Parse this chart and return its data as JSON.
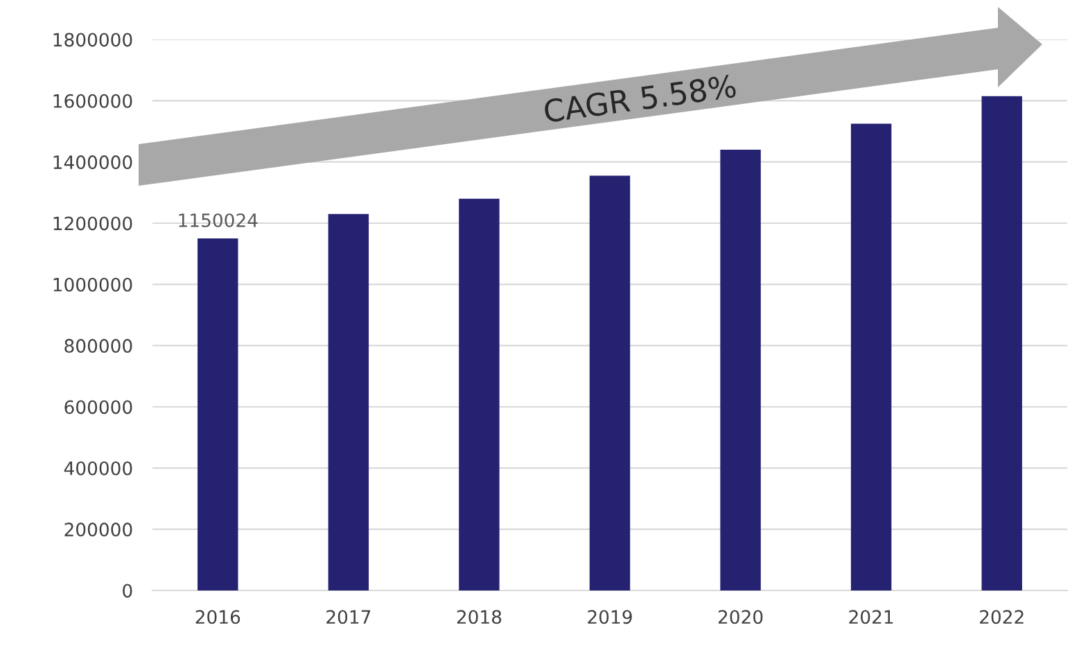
{
  "chart_data": {
    "type": "bar",
    "categories": [
      "2016",
      "2017",
      "2018",
      "2019",
      "2020",
      "2021",
      "2022"
    ],
    "values": [
      1150024,
      1230000,
      1280000,
      1355000,
      1440000,
      1525000,
      1615000
    ],
    "value_labels": [
      "1150024",
      null,
      null,
      null,
      null,
      null,
      null
    ],
    "color": "#262272",
    "ylim": [
      0,
      1800000
    ],
    "yticks": [
      0,
      200000,
      400000,
      600000,
      800000,
      1000000,
      1200000,
      1400000,
      1600000,
      1800000
    ],
    "grid": "y",
    "annotations": [
      "CAGR 5.58%"
    ]
  }
}
